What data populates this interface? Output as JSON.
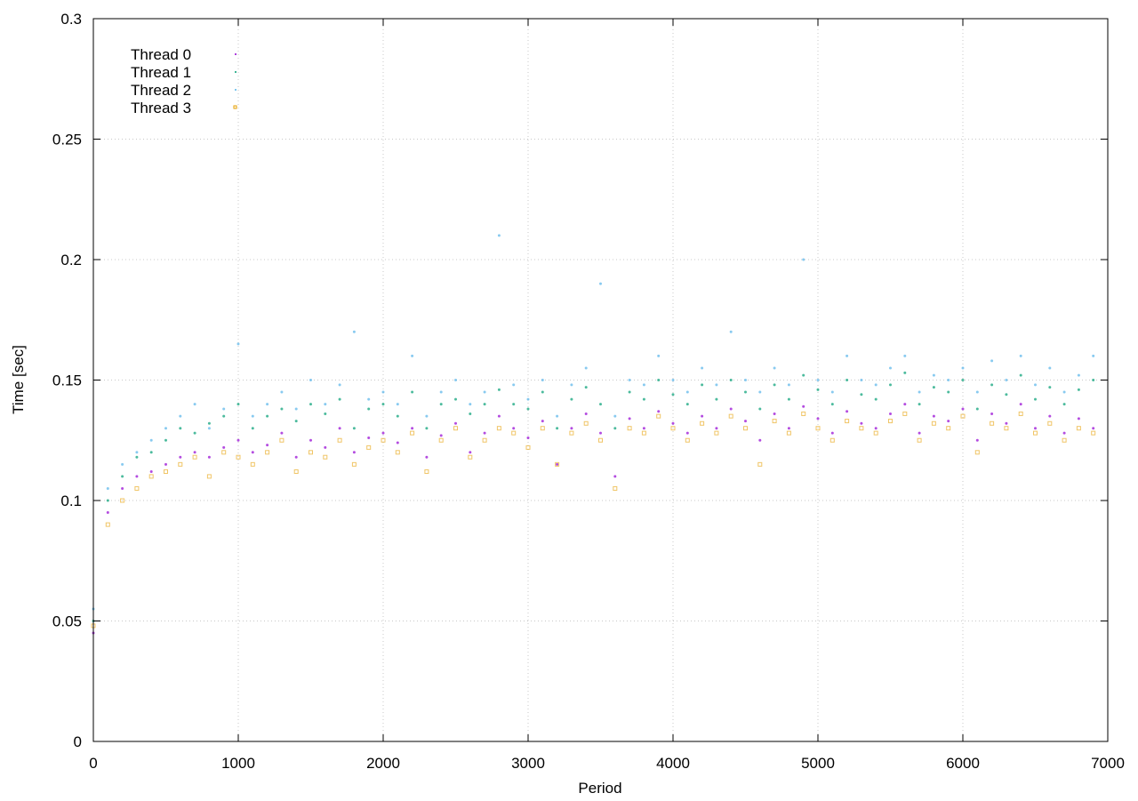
{
  "chart_data": {
    "type": "scatter",
    "xlabel": "Period",
    "ylabel": "Time [sec]",
    "xlim": [
      0,
      7000
    ],
    "ylim": [
      0,
      0.3
    ],
    "grid": true,
    "legend_position": "top-left",
    "xticks": [
      0,
      1000,
      2000,
      3000,
      4000,
      5000,
      6000,
      7000
    ],
    "yticks": [
      0,
      0.05,
      0.1,
      0.15,
      0.2,
      0.25,
      0.3
    ],
    "ytick_labels": [
      "0",
      "0.05",
      "0.1",
      "0.15",
      "0.2",
      "0.25",
      "0.3"
    ],
    "x_step": 100,
    "series": [
      {
        "name": "Thread 0",
        "color": "#9400d3",
        "marker": "dot",
        "values": [
          0.045,
          0.095,
          0.105,
          0.11,
          0.112,
          0.115,
          0.118,
          0.12,
          0.118,
          0.122,
          0.125,
          0.12,
          0.123,
          0.128,
          0.118,
          0.125,
          0.122,
          0.13,
          0.12,
          0.126,
          0.128,
          0.124,
          0.13,
          0.118,
          0.127,
          0.132,
          0.12,
          0.128,
          0.135,
          0.13,
          0.126,
          0.133,
          0.115,
          0.13,
          0.136,
          0.128,
          0.11,
          0.134,
          0.13,
          0.137,
          0.132,
          0.128,
          0.135,
          0.13,
          0.138,
          0.133,
          0.125,
          0.136,
          0.13,
          0.139,
          0.134,
          0.128,
          0.137,
          0.132,
          0.13,
          0.136,
          0.14,
          0.128,
          0.135,
          0.133,
          0.138,
          0.125,
          0.136,
          0.132,
          0.14,
          0.13,
          0.135,
          0.128,
          0.134,
          0.13
        ]
      },
      {
        "name": "Thread 1",
        "color": "#009e73",
        "marker": "dot",
        "values": [
          0.05,
          0.1,
          0.11,
          0.118,
          0.12,
          0.125,
          0.13,
          0.128,
          0.132,
          0.135,
          0.14,
          0.13,
          0.135,
          0.138,
          0.133,
          0.14,
          0.136,
          0.142,
          0.13,
          0.138,
          0.14,
          0.135,
          0.145,
          0.13,
          0.14,
          0.142,
          0.136,
          0.14,
          0.146,
          0.14,
          0.138,
          0.145,
          0.13,
          0.142,
          0.147,
          0.14,
          0.13,
          0.145,
          0.142,
          0.15,
          0.144,
          0.14,
          0.148,
          0.142,
          0.15,
          0.145,
          0.138,
          0.148,
          0.142,
          0.152,
          0.146,
          0.14,
          0.15,
          0.144,
          0.142,
          0.148,
          0.153,
          0.14,
          0.147,
          0.145,
          0.15,
          0.138,
          0.148,
          0.144,
          0.152,
          0.142,
          0.147,
          0.14,
          0.146,
          0.15
        ]
      },
      {
        "name": "Thread 2",
        "color": "#56b4e9",
        "marker": "dot",
        "values": [
          0.055,
          0.105,
          0.115,
          0.12,
          0.125,
          0.13,
          0.135,
          0.14,
          0.13,
          0.138,
          0.165,
          0.135,
          0.14,
          0.145,
          0.138,
          0.15,
          0.14,
          0.148,
          0.17,
          0.142,
          0.145,
          0.14,
          0.16,
          0.135,
          0.145,
          0.15,
          0.14,
          0.145,
          0.21,
          0.148,
          0.142,
          0.15,
          0.135,
          0.148,
          0.155,
          0.19,
          0.135,
          0.15,
          0.148,
          0.16,
          0.15,
          0.145,
          0.155,
          0.148,
          0.17,
          0.15,
          0.145,
          0.155,
          0.148,
          0.2,
          0.15,
          0.145,
          0.16,
          0.15,
          0.148,
          0.155,
          0.16,
          0.145,
          0.152,
          0.15,
          0.155,
          0.145,
          0.158,
          0.15,
          0.16,
          0.148,
          0.155,
          0.145,
          0.152,
          0.16
        ]
      },
      {
        "name": "Thread 3",
        "color": "#e69f00",
        "marker": "square",
        "values": [
          0.048,
          0.09,
          0.1,
          0.105,
          0.11,
          0.112,
          0.115,
          0.118,
          0.11,
          0.12,
          0.118,
          0.115,
          0.12,
          0.125,
          0.112,
          0.12,
          0.118,
          0.125,
          0.115,
          0.122,
          0.125,
          0.12,
          0.128,
          0.112,
          0.125,
          0.13,
          0.118,
          0.125,
          0.13,
          0.128,
          0.122,
          0.13,
          0.115,
          0.128,
          0.132,
          0.125,
          0.105,
          0.13,
          0.128,
          0.135,
          0.13,
          0.125,
          0.132,
          0.128,
          0.135,
          0.13,
          0.115,
          0.133,
          0.128,
          0.136,
          0.13,
          0.125,
          0.133,
          0.13,
          0.128,
          0.133,
          0.136,
          0.125,
          0.132,
          0.13,
          0.135,
          0.12,
          0.132,
          0.13,
          0.136,
          0.128,
          0.132,
          0.125,
          0.13,
          0.128
        ]
      }
    ]
  }
}
